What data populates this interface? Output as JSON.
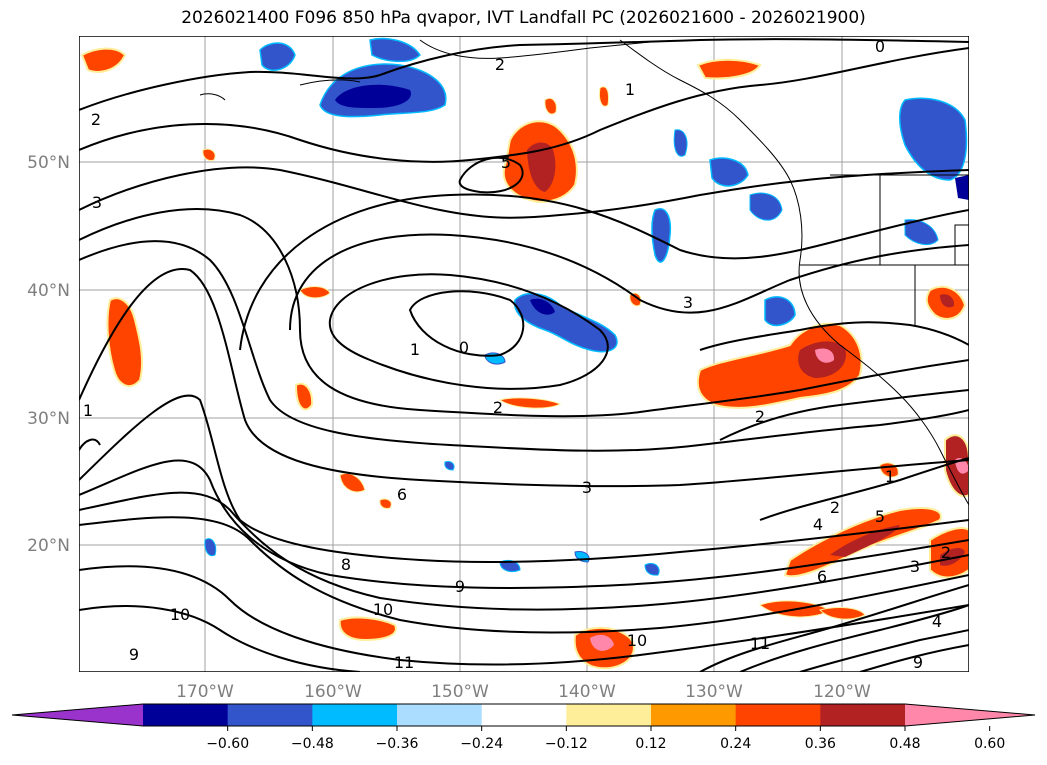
{
  "title": "2026021400 F096 850 hPa qvapor, IVT Landfall PC (2026021600 - 2026021900)",
  "map": {
    "lat_labels": [
      "50°N",
      "40°N",
      "30°N",
      "20°N"
    ],
    "lon_labels": [
      "170°W",
      "160°W",
      "150°W",
      "140°W",
      "130°W",
      "120°W"
    ],
    "contour_labels": [
      "0",
      "1",
      "2",
      "2",
      "3",
      "5",
      "1",
      "0",
      "3",
      "2",
      "2",
      "1",
      "2",
      "3",
      "4",
      "5",
      "6",
      "8",
      "9",
      "10",
      "10",
      "11",
      "9",
      "10",
      "11",
      "4",
      "3",
      "2",
      "1",
      "9",
      "6"
    ],
    "contour_color": "#000000",
    "gridlines": true
  },
  "colorbar": {
    "ticks": [
      "−0.60",
      "−0.48",
      "−0.36",
      "−0.24",
      "−0.12",
      "0.12",
      "0.24",
      "0.36",
      "0.48",
      "0.60"
    ],
    "colors": [
      "#9933cc",
      "#000099",
      "#3355cc",
      "#00bbff",
      "#aaddff",
      "#ffffff",
      "#ffee99",
      "#ff9900",
      "#ff4400",
      "#b22222",
      "#ff88aa"
    ],
    "extend": "both"
  }
}
